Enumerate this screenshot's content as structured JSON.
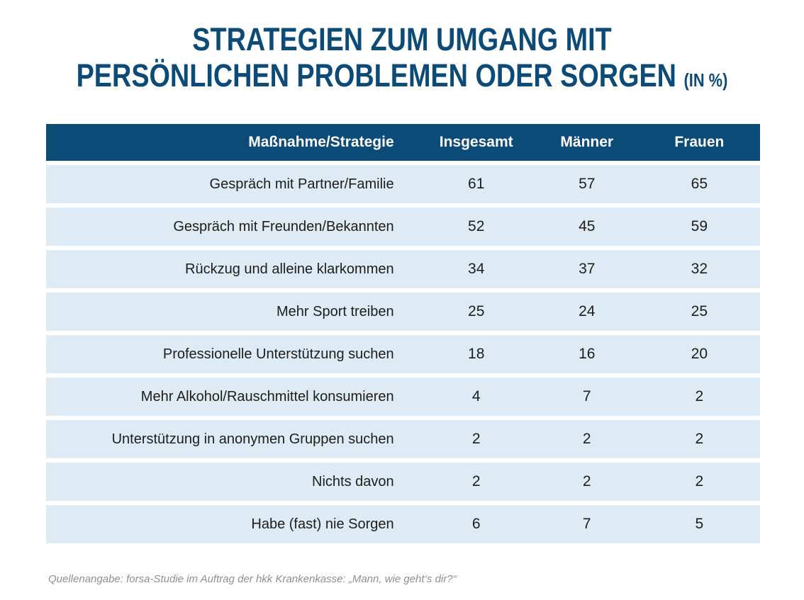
{
  "title": {
    "line1": "STRATEGIEN ZUM UMGANG MIT",
    "line2": "PERSÖNLICHEN PROBLEMEN ODER SORGEN",
    "suffix": "(IN %)"
  },
  "table": {
    "headers": [
      "Maßnahme/Strategie",
      "Insgesamt",
      "Männer",
      "Frauen"
    ],
    "rows": [
      {
        "label": "Gespräch mit Partner/Familie",
        "values": [
          61,
          57,
          65
        ]
      },
      {
        "label": "Gespräch mit Freunden/Bekannten",
        "values": [
          52,
          45,
          59
        ]
      },
      {
        "label": "Rückzug und alleine klarkommen",
        "values": [
          34,
          37,
          32
        ]
      },
      {
        "label": "Mehr Sport treiben",
        "values": [
          25,
          24,
          25
        ]
      },
      {
        "label": "Professionelle Unterstützung suchen",
        "values": [
          18,
          16,
          20
        ]
      },
      {
        "label": "Mehr Alkohol/Rauschmittel konsumieren",
        "values": [
          4,
          7,
          2
        ]
      },
      {
        "label": "Unterstützung in anonymen Gruppen suchen",
        "values": [
          2,
          2,
          2
        ]
      },
      {
        "label": "Nichts davon",
        "values": [
          2,
          2,
          2
        ]
      },
      {
        "label": "Habe (fast) nie Sorgen",
        "values": [
          6,
          7,
          5
        ]
      }
    ]
  },
  "footer": {
    "source": "Quellenangabe: forsa-Studie im Auftrag der hkk Krankenkasse: „Mann, wie geht‘s dir?“"
  },
  "colors": {
    "navy": "#0c4a78",
    "row_background": "#deebf5",
    "row_text": "#1d1d1b",
    "header_text": "#ffffff",
    "source_gray": "#8f8f8f"
  },
  "chart_data": {
    "type": "table",
    "title": "Strategien zum Umgang mit persönlichen Problemen oder Sorgen (in %)",
    "columns": [
      "Maßnahme/Strategie",
      "Insgesamt",
      "Männer",
      "Frauen"
    ],
    "rows": [
      [
        "Gespräch mit Partner/Familie",
        61,
        57,
        65
      ],
      [
        "Gespräch mit Freunden/Bekannten",
        52,
        45,
        59
      ],
      [
        "Rückzug und alleine klarkommen",
        34,
        37,
        32
      ],
      [
        "Mehr Sport treiben",
        25,
        24,
        25
      ],
      [
        "Professionelle Unterstützung suchen",
        18,
        16,
        20
      ],
      [
        "Mehr Alkohol/Rauschmittel konsumieren",
        4,
        7,
        2
      ],
      [
        "Unterstützung in anonymen Gruppen suchen",
        2,
        2,
        2
      ],
      [
        "Nichts davon",
        2,
        2,
        2
      ],
      [
        "Habe (fast) nie Sorgen",
        6,
        7,
        5
      ]
    ],
    "source": "Quellenangabe: forsa-Studie im Auftrag der hkk Krankenkasse: „Mann, wie geht‘s dir?“",
    "legend_position": "none",
    "grid": false
  }
}
